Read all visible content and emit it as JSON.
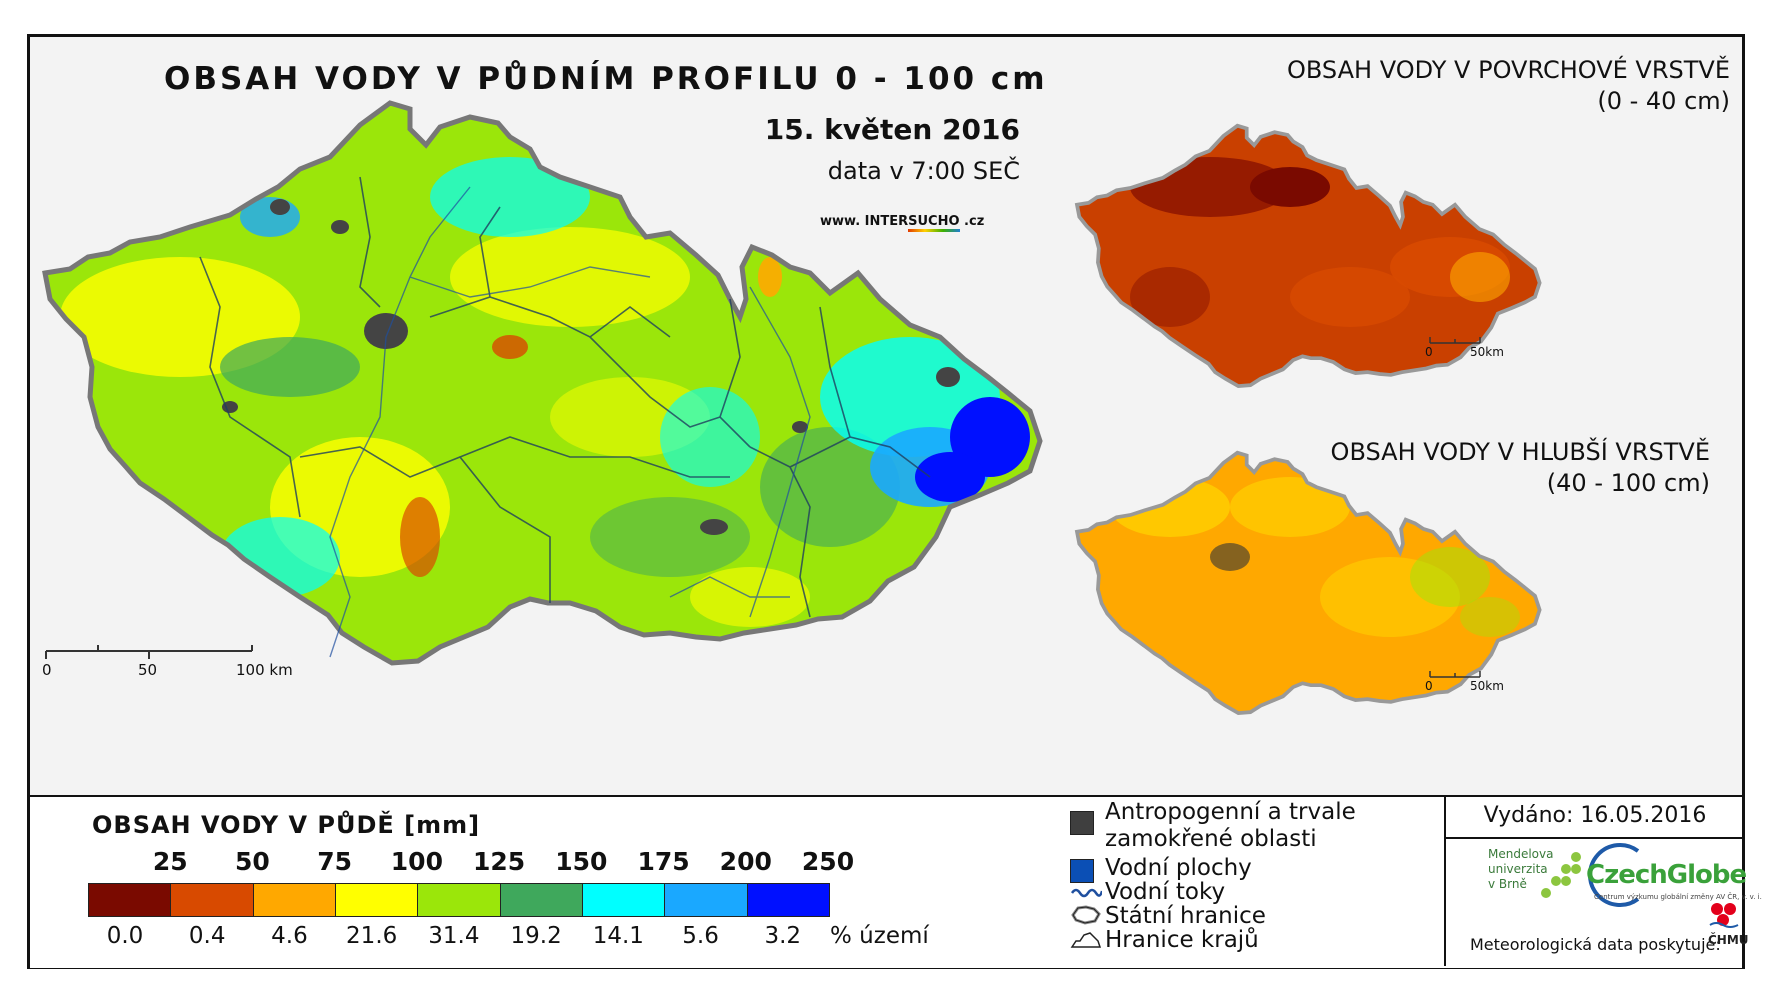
{
  "main_map": {
    "title": "OBSAH VODY V PŮDNÍM PROFILU 0 - 100 cm",
    "date": "15. květen 2016",
    "time": "data v 7:00 SEČ",
    "website_prefix": "www. INTER",
    "website_highlight": "SUCHO",
    "website_suffix": " .cz",
    "scale_labels": [
      "0",
      "50",
      "100 km"
    ]
  },
  "surface_map": {
    "title_line1": "OBSAH VODY V POVRCHOVÉ VRSTVĚ",
    "title_line2": "(0 - 40 cm)",
    "scale_labels": [
      "0",
      "50km"
    ]
  },
  "deep_map": {
    "title_line1": "OBSAH VODY V HLUBŠÍ VRSTVĚ",
    "title_line2": "(40 - 100 cm)",
    "scale_labels": [
      "0",
      "50km"
    ]
  },
  "legend": {
    "title": "OBSAH VODY V PŮDĚ [mm]",
    "thresholds": [
      "25",
      "50",
      "75",
      "100",
      "125",
      "150",
      "175",
      "200",
      "250"
    ],
    "classes": [
      {
        "color": "#7a0a00",
        "percent": "0.0"
      },
      {
        "color": "#d84a00",
        "percent": "0.4"
      },
      {
        "color": "#ffa800",
        "percent": "4.6"
      },
      {
        "color": "#ffff00",
        "percent": "21.6"
      },
      {
        "color": "#9be60a",
        "percent": "31.4"
      },
      {
        "color": "#3fa85c",
        "percent": "19.2"
      },
      {
        "color": "#00ffff",
        "percent": "14.1"
      },
      {
        "color": "#1aa8ff",
        "percent": "5.6"
      },
      {
        "color": "#0010ff",
        "percent": "3.2"
      }
    ],
    "percent_unit": "% území"
  },
  "legend_symbols": {
    "anthropogenic_line1": "Antropogenní a trvale",
    "anthropogenic_line2": "zamokřené oblasti",
    "water_bodies": "Vodní plochy",
    "rivers": "Vodní toky",
    "state_border": "Státní hranice",
    "region_border": "Hranice krajů",
    "colors": {
      "anthropogenic": "#3f3f3f",
      "water": "#0b4fb5",
      "river": "#1f4f9f"
    }
  },
  "issued": {
    "label": "Vydáno: 16.05.2016",
    "mendel_line1": "Mendelova",
    "mendel_line2": "univerzita",
    "mendel_line3": "v Brně",
    "czechglobe": "CzechGlobe",
    "czechglobe_sub": "Centrum výzkumu globální změny AV ČR, v. v. i.",
    "meteo_credit": "Meteorologická data poskytuje:",
    "chmu": "ČHMÚ"
  }
}
